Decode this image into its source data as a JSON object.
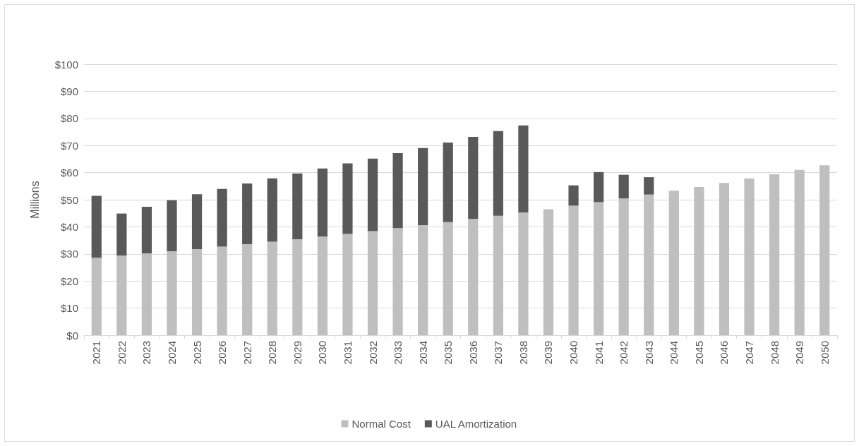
{
  "chart_data": {
    "type": "bar",
    "stacked": true,
    "ylabel": "Millions",
    "categories": [
      "2021",
      "2022",
      "2023",
      "2024",
      "2025",
      "2026",
      "2027",
      "2028",
      "2029",
      "2030",
      "2031",
      "2032",
      "2033",
      "2034",
      "2035",
      "2036",
      "2037",
      "2038",
      "2039",
      "2040",
      "2041",
      "2042",
      "2043",
      "2044",
      "2045",
      "2046",
      "2047",
      "2048",
      "2049",
      "2050"
    ],
    "series": [
      {
        "name": "Normal Cost",
        "color": "#bfbfbf",
        "values": [
          28.6,
          29.4,
          30.2,
          31.0,
          31.8,
          32.7,
          33.6,
          34.5,
          35.4,
          36.4,
          37.4,
          38.4,
          39.5,
          40.6,
          41.7,
          42.9,
          44.1,
          45.3,
          46.5,
          47.8,
          49.1,
          50.5,
          51.9,
          53.3,
          54.7,
          56.2,
          57.8,
          59.4,
          61.0,
          62.7
        ]
      },
      {
        "name": "UAL Amortization",
        "color": "#595959",
        "values": [
          22.8,
          15.5,
          17.2,
          18.8,
          20.2,
          21.3,
          22.4,
          23.4,
          24.3,
          25.1,
          26.0,
          26.8,
          27.7,
          28.5,
          29.4,
          30.3,
          31.2,
          32.1,
          null,
          7.5,
          11.1,
          8.7,
          6.4,
          null,
          null,
          null,
          null,
          null,
          null,
          null
        ]
      }
    ],
    "ylim": [
      0,
      100
    ],
    "yticks": [
      {
        "value": 0,
        "label": "$0"
      },
      {
        "value": 10,
        "label": "$10"
      },
      {
        "value": 20,
        "label": "$20"
      },
      {
        "value": 30,
        "label": "$30"
      },
      {
        "value": 40,
        "label": "$40"
      },
      {
        "value": 50,
        "label": "$50"
      },
      {
        "value": 60,
        "label": "$60"
      },
      {
        "value": 70,
        "label": "$70"
      },
      {
        "value": 80,
        "label": "$80"
      },
      {
        "value": 90,
        "label": "$90"
      },
      {
        "value": 100,
        "label": "$100"
      }
    ],
    "grid": "y",
    "legend": "bottom"
  }
}
